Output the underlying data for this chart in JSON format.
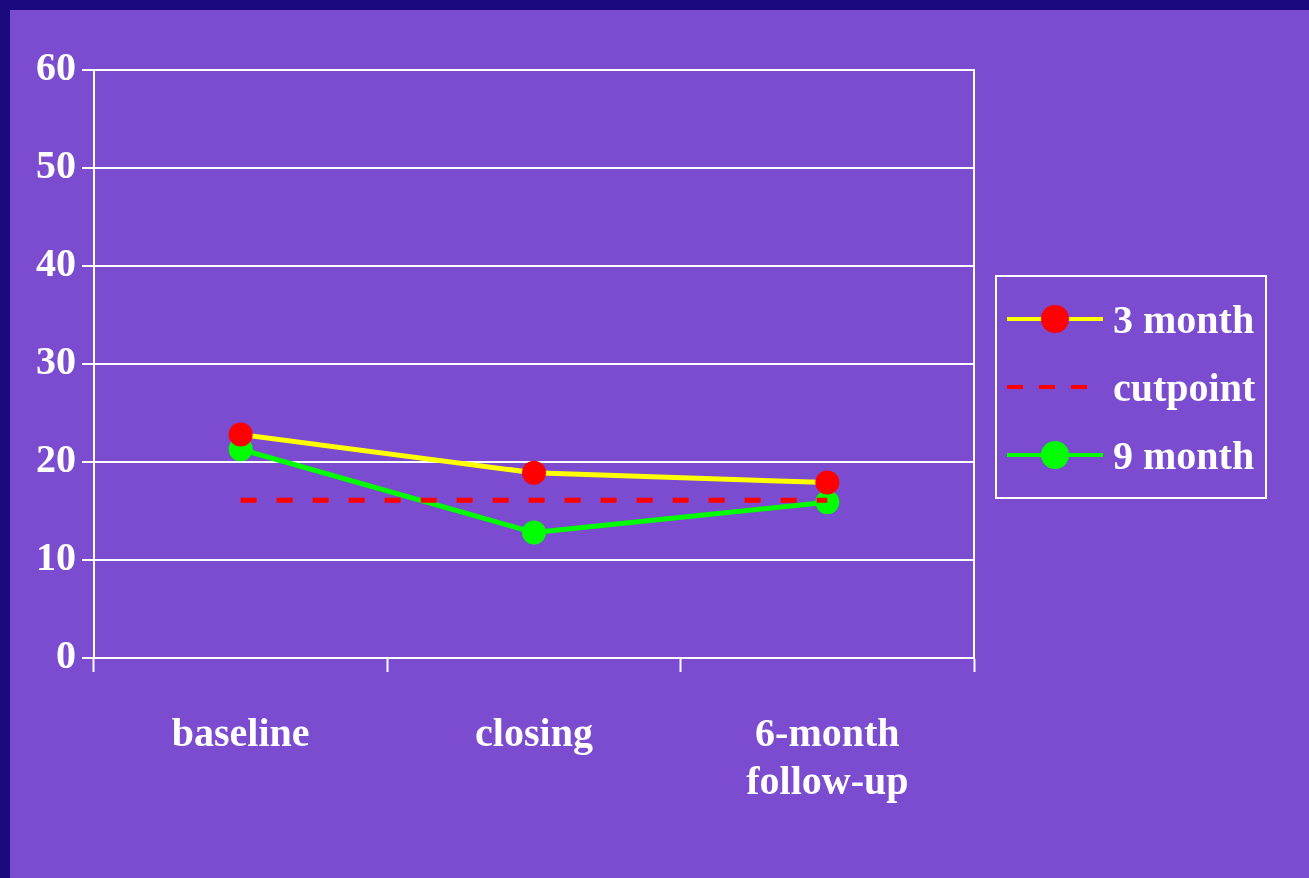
{
  "chart_data": {
    "type": "line",
    "categories": [
      "baseline",
      "closing",
      "6-month follow-up"
    ],
    "series": [
      {
        "name": "3 month",
        "color": "#ffff00",
        "colors": [
          "#ff0000",
          "#ff0000",
          "#ff0000"
        ],
        "marker": "circle",
        "values": [
          22.8,
          18.9,
          17.9
        ]
      },
      {
        "name": "cutpoint",
        "color": "#ff0000",
        "marker": "none",
        "line_style": "dashed",
        "values": [
          16.1,
          16.1,
          16.1
        ]
      },
      {
        "name": "9 month",
        "color": "#00ff00",
        "colors": [
          "#00ff00",
          "#00ff00",
          "#00ff00"
        ],
        "marker": "circle",
        "values": [
          21.3,
          12.8,
          15.9
        ]
      }
    ],
    "ylim": [
      0,
      60
    ],
    "yticks": [
      0,
      10,
      20,
      30,
      40,
      50,
      60
    ],
    "grid": "y",
    "legend": "right"
  }
}
